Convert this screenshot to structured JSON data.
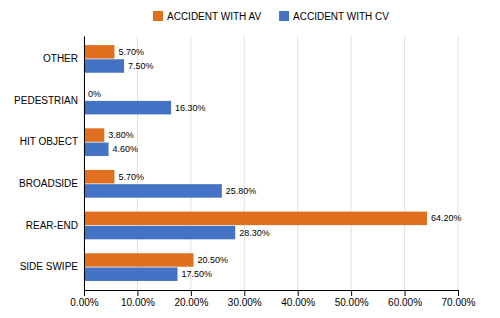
{
  "chart_data": {
    "type": "bar",
    "orientation": "horizontal",
    "categories": [
      "SIDE SWIPE",
      "REAR-END",
      "BROADSIDE",
      "HIT OBJECT",
      "PEDESTRIAN",
      "OTHER"
    ],
    "series": [
      {
        "name": "ACCIDENT WITH AV",
        "color": "#E07020",
        "values": [
          20.5,
          64.2,
          5.7,
          3.8,
          0.0,
          5.7
        ],
        "value_labels": [
          "20.50%",
          "64.20%",
          "5.70%",
          "3.80%",
          "0%",
          "5.70%"
        ]
      },
      {
        "name": "ACCIDENT WITH CV",
        "color": "#4472C4",
        "values": [
          17.5,
          28.3,
          25.8,
          4.6,
          16.3,
          7.5
        ],
        "value_labels": [
          "17.50%",
          "28.30%",
          "25.80%",
          "4.60%",
          "16.30%",
          "7.50%"
        ]
      }
    ],
    "xlim": [
      0,
      70
    ],
    "xticks": [
      {
        "value": 0,
        "label": "0.00%"
      },
      {
        "value": 10,
        "label": "10.00%"
      },
      {
        "value": 20,
        "label": "20.00%"
      },
      {
        "value": 30,
        "label": "30.00%"
      },
      {
        "value": 40,
        "label": "40.00%"
      },
      {
        "value": 50,
        "label": "50.00%"
      },
      {
        "value": 60,
        "label": "60.00%"
      },
      {
        "value": 70,
        "label": "70.00%"
      }
    ],
    "grid": true,
    "legend": "top",
    "data_labels": true
  }
}
